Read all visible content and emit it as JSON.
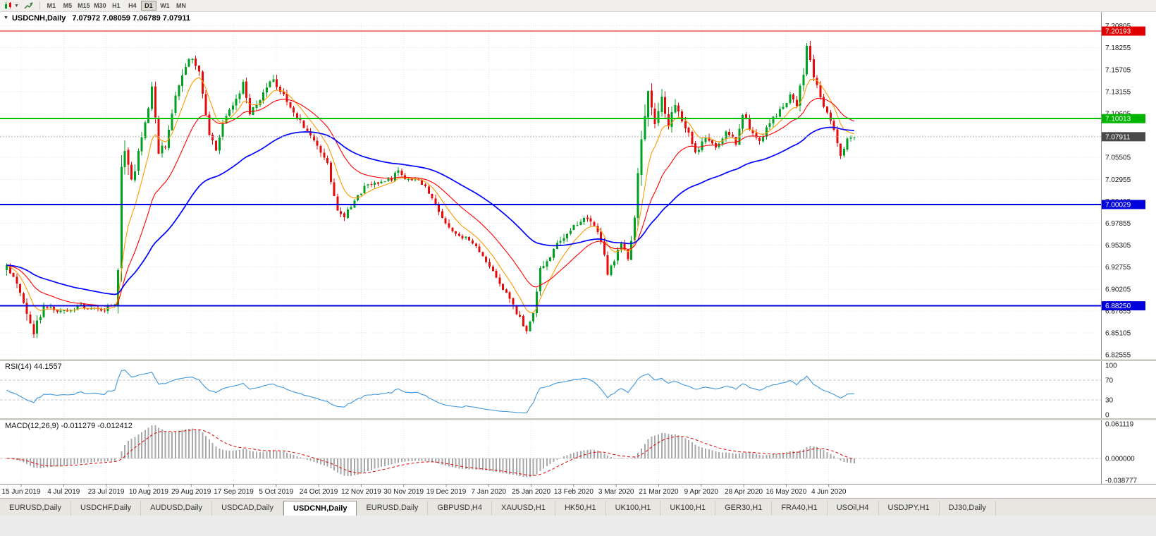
{
  "toolbar": {
    "timeframes": [
      {
        "label": "M1"
      },
      {
        "label": "M5"
      },
      {
        "label": "M15"
      },
      {
        "label": "M30"
      },
      {
        "label": "H1"
      },
      {
        "label": "H4"
      },
      {
        "label": "D1",
        "active": true
      },
      {
        "label": "W1"
      },
      {
        "label": "MN"
      }
    ]
  },
  "chart": {
    "symbol_title": "USDCNH,Daily",
    "ohlc": "7.07972 7.08059 7.06789 7.07911"
  },
  "price_axis": {
    "labels": [
      "7.20805",
      "7.18255",
      "7.15705",
      "7.13155",
      "7.10605",
      "7.08055",
      "7.05505",
      "7.02955",
      "7.00405",
      "6.97855",
      "6.95305",
      "6.92755",
      "6.90205",
      "6.87655",
      "6.85105",
      "6.82555"
    ]
  },
  "markers": [
    {
      "value": "7.20193",
      "price": 7.20193,
      "color": "#e00000",
      "text": "#ffffff"
    },
    {
      "value": "7.10013",
      "price": 7.10013,
      "color": "#00b400",
      "text": "#ffffff"
    },
    {
      "value": "7.07911",
      "price": 7.07911,
      "color": "#484848",
      "text": "#ffffff"
    },
    {
      "value": "7.00029",
      "price": 7.00029,
      "color": "#0000dc",
      "text": "#ffffff"
    },
    {
      "value": "6.88250",
      "price": 6.8825,
      "color": "#0000dc",
      "text": "#ffffff"
    }
  ],
  "hlines": [
    {
      "price": 7.20193,
      "color": "#e00000",
      "width": 1.2
    },
    {
      "price": 7.10013,
      "color": "#00c400",
      "width": 2
    },
    {
      "price": 7.00029,
      "color": "#0000e0",
      "width": 2
    },
    {
      "price": 6.8825,
      "color": "#0000e0",
      "width": 2
    }
  ],
  "current_price": {
    "value": "7.07911",
    "price": 7.07911,
    "line_color": "#b4b4b4"
  },
  "date_axis": [
    "15 Jun 2019",
    "4 Jul 2019",
    "23 Jul 2019",
    "10 Aug 2019",
    "29 Aug 2019",
    "17 Sep 2019",
    "5 Oct 2019",
    "24 Oct 2019",
    "12 Nov 2019",
    "30 Nov 2019",
    "19 Dec 2019",
    "7 Jan 2020",
    "25 Jan 2020",
    "13 Feb 2020",
    "3 Mar 2020",
    "21 Mar 2020",
    "9 Apr 2020",
    "28 Apr 2020",
    "16 May 2020",
    "4 Jun 2020"
  ],
  "rsi": {
    "label": "RSI(14)",
    "value": "44.1557",
    "axis_labels": [
      "100",
      "70",
      "30",
      "0"
    ],
    "levels": [
      70,
      30
    ],
    "color": "#3f97dd"
  },
  "macd": {
    "label": "MACD(12,26,9)",
    "value": "-0.011279 -0.012412",
    "axis_labels": [
      "0.061119",
      "0.000000",
      "-0.038777"
    ],
    "histogram_color": "#a8a8a8",
    "signal_color": "#e00000"
  },
  "tabs": [
    {
      "label": "EURUSD,Daily"
    },
    {
      "label": "USDCHF,Daily"
    },
    {
      "label": "AUDUSD,Daily"
    },
    {
      "label": "USDCAD,Daily"
    },
    {
      "label": "USDCNH,Daily",
      "active": true
    },
    {
      "label": "EURUSD,Daily"
    },
    {
      "label": "GBPUSD,H4"
    },
    {
      "label": "XAUUSD,H1"
    },
    {
      "label": "HK50,H1"
    },
    {
      "label": "UK100,H1"
    },
    {
      "label": "UK100,H1"
    },
    {
      "label": "GER30,H1"
    },
    {
      "label": "FRA40,H1"
    },
    {
      "label": "USOil,H4"
    },
    {
      "label": "USDJPY,H1"
    },
    {
      "label": "DJ30,Daily"
    }
  ],
  "chart_data": {
    "type": "candlestick",
    "symbol": "USDCNH",
    "timeframe": "Daily",
    "visible_range": {
      "start": "15 Jun 2019",
      "end": "Jun 2020"
    },
    "price_range": [
      6.82555,
      7.20805
    ],
    "candle_count": 252,
    "colors": {
      "bull": "#00a020",
      "bear": "#e60b0b"
    },
    "moving_averages": [
      {
        "period": 8,
        "color": "#ff9900",
        "width": 1.1
      },
      {
        "period": 21,
        "color": "#ff0000",
        "width": 1.1
      },
      {
        "period": 55,
        "color": "#0000ff",
        "width": 1.7
      }
    ],
    "close_anchors": [
      [
        0,
        6.928,
        0.012
      ],
      [
        4,
        6.896,
        0.014
      ],
      [
        8,
        6.852,
        0.012
      ],
      [
        11,
        6.882,
        0.008
      ],
      [
        16,
        6.876,
        0.007
      ],
      [
        22,
        6.882,
        0.007
      ],
      [
        28,
        6.876,
        0.006
      ],
      [
        32,
        6.886,
        0.006
      ],
      [
        33,
        6.93,
        0.02
      ],
      [
        34,
        7.035,
        0.028
      ],
      [
        35,
        7.058,
        0.022
      ],
      [
        37,
        7.028,
        0.018
      ],
      [
        39,
        7.058,
        0.014
      ],
      [
        41,
        7.092,
        0.014
      ],
      [
        43,
        7.134,
        0.012
      ],
      [
        45,
        7.062,
        0.016
      ],
      [
        47,
        7.068,
        0.012
      ],
      [
        50,
        7.128,
        0.013
      ],
      [
        53,
        7.162,
        0.012
      ],
      [
        55,
        7.172,
        0.012
      ],
      [
        57,
        7.152,
        0.01
      ],
      [
        60,
        7.078,
        0.012
      ],
      [
        62,
        7.066,
        0.01
      ],
      [
        65,
        7.104,
        0.01
      ],
      [
        68,
        7.12,
        0.01
      ],
      [
        70,
        7.146,
        0.011
      ],
      [
        72,
        7.106,
        0.01
      ],
      [
        75,
        7.12,
        0.009
      ],
      [
        78,
        7.146,
        0.01
      ],
      [
        80,
        7.14,
        0.009
      ],
      [
        83,
        7.12,
        0.008
      ],
      [
        87,
        7.096,
        0.008
      ],
      [
        92,
        7.07,
        0.008
      ],
      [
        95,
        7.046,
        0.009
      ],
      [
        98,
        6.996,
        0.01
      ],
      [
        100,
        6.986,
        0.008
      ],
      [
        103,
        7.006,
        0.008
      ],
      [
        106,
        7.02,
        0.007
      ],
      [
        110,
        7.026,
        0.006
      ],
      [
        114,
        7.03,
        0.006
      ],
      [
        116,
        7.042,
        0.009
      ],
      [
        118,
        7.03,
        0.006
      ],
      [
        122,
        7.03,
        0.006
      ],
      [
        126,
        7.01,
        0.007
      ],
      [
        130,
        6.976,
        0.008
      ],
      [
        133,
        6.966,
        0.007
      ],
      [
        137,
        6.96,
        0.006
      ],
      [
        140,
        6.946,
        0.006
      ],
      [
        143,
        6.93,
        0.007
      ],
      [
        146,
        6.906,
        0.008
      ],
      [
        148,
        6.896,
        0.008
      ],
      [
        151,
        6.876,
        0.01
      ],
      [
        154,
        6.852,
        0.011
      ],
      [
        156,
        6.872,
        0.01
      ],
      [
        158,
        6.926,
        0.011
      ],
      [
        161,
        6.94,
        0.008
      ],
      [
        164,
        6.96,
        0.008
      ],
      [
        168,
        6.976,
        0.008
      ],
      [
        172,
        6.986,
        0.009
      ],
      [
        176,
        6.96,
        0.008
      ],
      [
        178,
        6.922,
        0.01
      ],
      [
        180,
        6.936,
        0.008
      ],
      [
        182,
        6.956,
        0.008
      ],
      [
        184,
        6.936,
        0.008
      ],
      [
        186,
        6.982,
        0.012
      ],
      [
        188,
        7.082,
        0.026
      ],
      [
        190,
        7.13,
        0.022
      ],
      [
        192,
        7.092,
        0.022
      ],
      [
        194,
        7.124,
        0.018
      ],
      [
        196,
        7.096,
        0.016
      ],
      [
        198,
        7.114,
        0.012
      ],
      [
        201,
        7.09,
        0.01
      ],
      [
        204,
        7.062,
        0.01
      ],
      [
        207,
        7.076,
        0.009
      ],
      [
        210,
        7.066,
        0.008
      ],
      [
        213,
        7.086,
        0.008
      ],
      [
        216,
        7.072,
        0.008
      ],
      [
        218,
        7.108,
        0.011
      ],
      [
        220,
        7.09,
        0.008
      ],
      [
        223,
        7.072,
        0.008
      ],
      [
        226,
        7.096,
        0.008
      ],
      [
        229,
        7.11,
        0.008
      ],
      [
        232,
        7.126,
        0.008
      ],
      [
        234,
        7.116,
        0.008
      ],
      [
        236,
        7.156,
        0.014
      ],
      [
        237,
        7.184,
        0.012
      ],
      [
        239,
        7.15,
        0.01
      ],
      [
        241,
        7.126,
        0.009
      ],
      [
        243,
        7.106,
        0.008
      ],
      [
        245,
        7.086,
        0.008
      ],
      [
        247,
        7.056,
        0.008
      ],
      [
        249,
        7.076,
        0.007
      ],
      [
        251,
        7.079,
        0.006
      ]
    ]
  }
}
